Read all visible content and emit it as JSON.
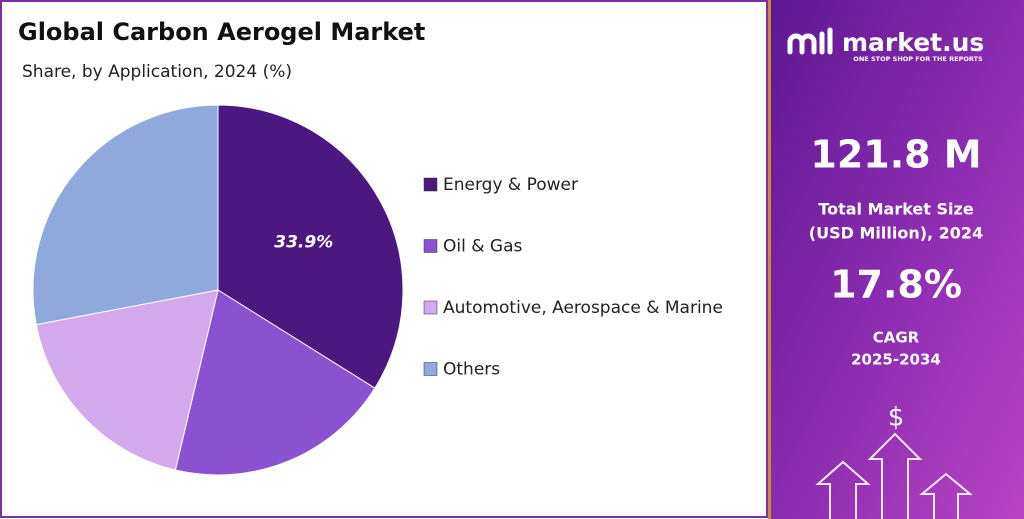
{
  "chart_data": {
    "type": "pie",
    "title": "Global Carbon Aerogel Market",
    "subtitle": "Share, by Application, 2024 (%)",
    "categories": [
      "Energy & Power",
      "Oil & Gas",
      "Automotive, Aerospace & Marine",
      "Others"
    ],
    "values": [
      33.9,
      19.8,
      18.3,
      28.0
    ],
    "value_labels": [
      "33.9%",
      null,
      null,
      null
    ],
    "colors": [
      "#4b1880",
      "#8a52d0",
      "#d3a9ee",
      "#8fa9dc"
    ],
    "legend": "right"
  },
  "sidebar": {
    "brand": "market.us",
    "tagline": "ONE STOP SHOP FOR THE REPORTS",
    "market_size": "121.8 M",
    "market_size_label": [
      "Total Market Size",
      "(USD Million), 2024"
    ],
    "cagr": "17.8%",
    "cagr_label": [
      "CAGR",
      "2025-2034"
    ],
    "icon": "$"
  }
}
